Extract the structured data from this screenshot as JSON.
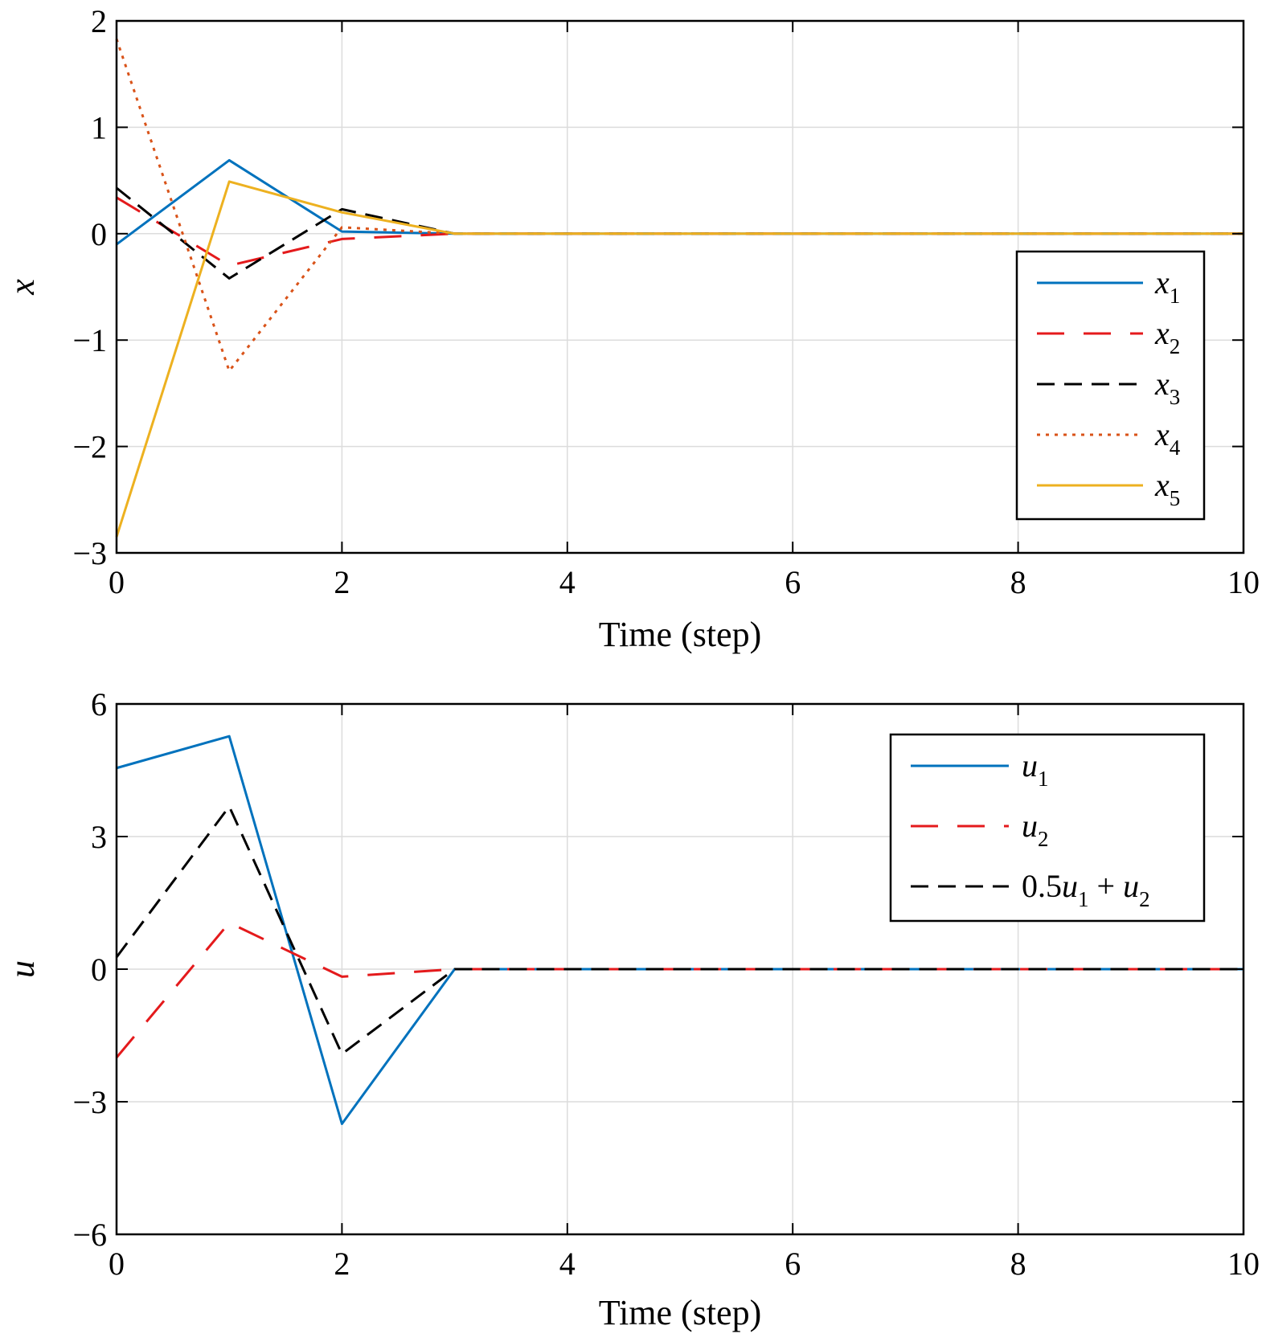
{
  "chart_data": [
    {
      "type": "line",
      "xlabel": "Time (step)",
      "ylabel": "x",
      "xlim": [
        0,
        10
      ],
      "ylim": [
        -3,
        2
      ],
      "xticks": [
        0,
        2,
        4,
        6,
        8,
        10
      ],
      "yticks": [
        -3,
        -2,
        -1,
        0,
        1,
        2
      ],
      "xtick_labels": [
        "0",
        "2",
        "4",
        "6",
        "8",
        "10"
      ],
      "ytick_labels": [
        "−3",
        "−2",
        "−1",
        "0",
        "1",
        "2"
      ],
      "grid": true,
      "legend_position": "right",
      "x": [
        0,
        1,
        2,
        3,
        4,
        5,
        6,
        7,
        8,
        9,
        10
      ],
      "series": [
        {
          "name": "x",
          "subscript": "1",
          "color": "#0072BD",
          "dash": "solid",
          "values": [
            -0.1,
            0.69,
            0.02,
            0.0,
            0,
            0,
            0,
            0,
            0,
            0,
            0
          ]
        },
        {
          "name": "x",
          "subscript": "2",
          "color": "#E41A1C",
          "dash": "long-dash",
          "values": [
            0.34,
            -0.3,
            -0.05,
            0.0,
            0,
            0,
            0,
            0,
            0,
            0,
            0
          ]
        },
        {
          "name": "x",
          "subscript": "3",
          "color": "#000000",
          "dash": "dash",
          "values": [
            0.43,
            -0.42,
            0.23,
            0.0,
            0,
            0,
            0,
            0,
            0,
            0,
            0
          ]
        },
        {
          "name": "x",
          "subscript": "4",
          "color": "#D95319",
          "dash": "dot",
          "values": [
            1.83,
            -1.29,
            0.06,
            0.0,
            0,
            0,
            0,
            0,
            0,
            0,
            0
          ]
        },
        {
          "name": "x",
          "subscript": "5",
          "color": "#EDB120",
          "dash": "solid",
          "values": [
            -2.85,
            0.49,
            0.2,
            0.0,
            0,
            0,
            0,
            0,
            0,
            0,
            0
          ]
        }
      ]
    },
    {
      "type": "line",
      "xlabel": "Time (step)",
      "ylabel": "u",
      "xlim": [
        0,
        10
      ],
      "ylim": [
        -6,
        6
      ],
      "xticks": [
        0,
        2,
        4,
        6,
        8,
        10
      ],
      "yticks": [
        -6,
        -3,
        0,
        3,
        6
      ],
      "xtick_labels": [
        "0",
        "2",
        "4",
        "6",
        "8",
        "10"
      ],
      "ytick_labels": [
        "−6",
        "−3",
        "0",
        "3",
        "6"
      ],
      "grid": true,
      "legend_position": "top-right",
      "x": [
        0,
        1,
        2,
        3,
        4,
        5,
        6,
        7,
        8,
        9,
        10
      ],
      "series": [
        {
          "name": "u",
          "subscript": "1",
          "color": "#0072BD",
          "dash": "solid",
          "values": [
            4.55,
            5.27,
            -3.5,
            0.0,
            0,
            0,
            0,
            0,
            0,
            0,
            0
          ]
        },
        {
          "name": "u",
          "subscript": "2",
          "color": "#E41A1C",
          "dash": "long-dash",
          "values": [
            -2.0,
            1.05,
            -0.17,
            0.0,
            0,
            0,
            0,
            0,
            0,
            0,
            0
          ]
        },
        {
          "name": "0.5u1 + u2",
          "color": "#000000",
          "dash": "dash",
          "values": [
            0.27,
            3.68,
            -1.92,
            0.0,
            0,
            0,
            0,
            0,
            0,
            0,
            0
          ]
        }
      ],
      "legend_labels": {
        "u1": {
          "base": "u",
          "sub": "1"
        },
        "u2": {
          "base": "u",
          "sub": "2"
        },
        "combo": {
          "coef": "0.5",
          "base1": "u",
          "sub1": "1",
          "plus": "+",
          "base2": "u",
          "sub2": "2"
        }
      }
    }
  ]
}
